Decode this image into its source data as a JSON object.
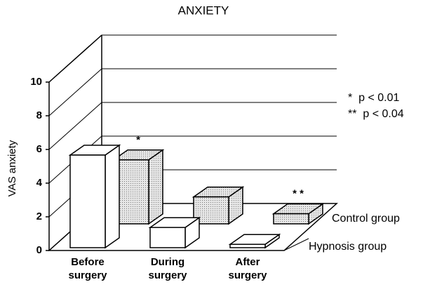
{
  "chart_data": {
    "type": "bar3d",
    "title": "ANXIETY",
    "ylabel": "VAS anxiety",
    "categories": [
      "Before surgery",
      "During surgery",
      "After surgery"
    ],
    "series": [
      {
        "name": "Hypnosis group",
        "color": "#ffffff",
        "values": [
          5.5,
          1.2,
          0.2
        ],
        "significance": [
          null,
          null,
          null
        ]
      },
      {
        "name": "Control group",
        "color": "#cfcfcf",
        "values": [
          3.8,
          1.6,
          0.6
        ],
        "significance": [
          "*",
          null,
          "* *"
        ]
      }
    ],
    "ylim": [
      0,
      10
    ],
    "yticks": [
      0,
      2,
      4,
      6,
      8,
      10
    ],
    "grid": true,
    "notes": [
      "*  p < 0.01",
      "**  p < 0.04"
    ]
  }
}
